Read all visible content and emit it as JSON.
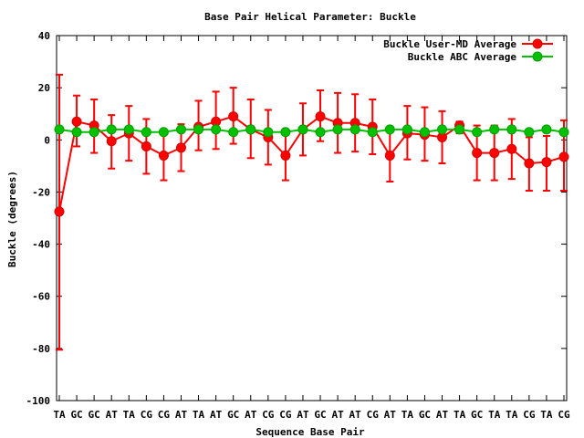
{
  "chart_data": {
    "type": "line",
    "title": "Base Pair Helical Parameter: Buckle",
    "xlabel": "Sequence Base Pair",
    "ylabel": "Buckle (degrees)",
    "categories": [
      "TA",
      "GC",
      "GC",
      "AT",
      "TA",
      "CG",
      "CG",
      "AT",
      "TA",
      "AT",
      "GC",
      "AT",
      "CG",
      "CG",
      "AT",
      "GC",
      "AT",
      "AT",
      "CG",
      "AT",
      "TA",
      "GC",
      "AT",
      "TA",
      "GC",
      "TA",
      "TA",
      "CG",
      "TA",
      "CG"
    ],
    "ylim": [
      -100,
      40
    ],
    "yticks": [
      40,
      20,
      0,
      -20,
      -40,
      -60,
      -80,
      -100
    ],
    "ytick_labels": [
      "40",
      "20",
      "0",
      "-20",
      "-40",
      "-60",
      "-80",
      "-100"
    ],
    "grid": false,
    "legend_position": "top-right",
    "series": [
      {
        "name": "Buckle User-MD Average",
        "color": "#ff0000",
        "values": [
          -27.5,
          7,
          5.5,
          -0.5,
          2.5,
          -2.5,
          -6,
          -3,
          5,
          7,
          9,
          4,
          1,
          -6,
          4,
          9,
          6.5,
          6.5,
          5,
          -6,
          2.5,
          2,
          1,
          5.5,
          -5,
          -5,
          -3.5,
          -9,
          -8.5,
          -6.5
        ],
        "err_low": [
          -80.5,
          -2.5,
          -5,
          -11,
          -8,
          -13,
          -15.5,
          -12,
          -4,
          -3.5,
          -1.5,
          -7,
          -9.5,
          -15.5,
          -6,
          -0.5,
          -5,
          -4.5,
          -5.5,
          -16,
          -7.5,
          -8,
          -9,
          2.5,
          -15.5,
          -15.5,
          -15,
          -19.5,
          -19.5,
          -19.5
        ],
        "err_high": [
          25,
          17,
          15.5,
          9.5,
          13,
          8,
          3,
          6,
          15,
          18.5,
          20,
          15.5,
          11.5,
          3.5,
          14,
          19,
          18,
          17.5,
          15.5,
          4,
          13,
          12.5,
          11,
          7,
          5.5,
          5.5,
          8,
          1,
          1.5,
          7.5
        ]
      },
      {
        "name": "Buckle ABC Average",
        "color": "#00c000",
        "values": [
          4,
          3,
          3,
          4,
          4,
          3,
          3,
          4,
          4,
          4,
          3,
          4,
          3,
          3,
          4,
          3,
          4,
          4,
          3,
          4,
          4,
          3,
          4,
          4,
          3,
          4,
          4,
          3,
          4,
          3
        ]
      }
    ]
  },
  "colors": {
    "user_md": "#ff0000",
    "abc": "#00c000",
    "axis": "#000000"
  }
}
